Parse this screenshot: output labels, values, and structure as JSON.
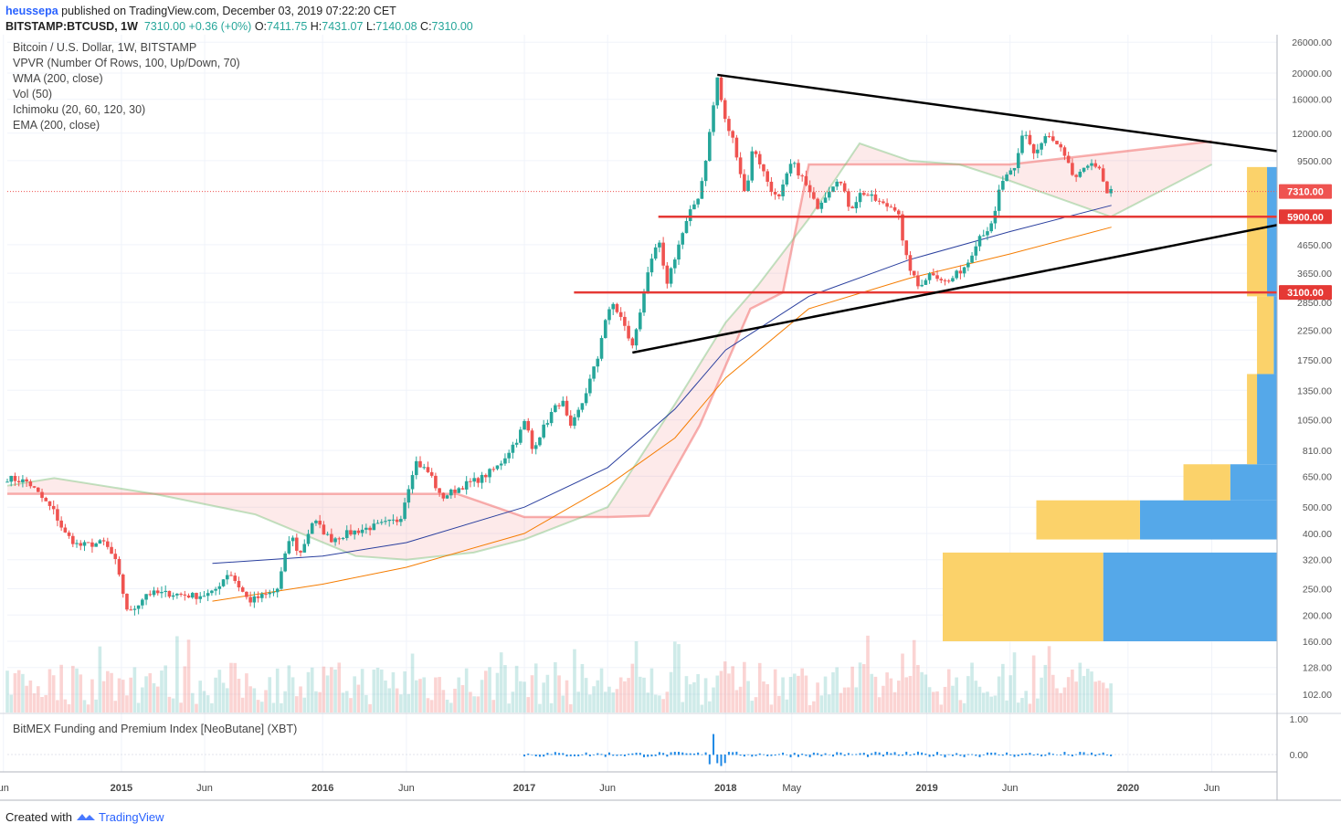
{
  "header": {
    "user": "heussepa",
    "published": "published on TradingView.com, December 03, 2019 07:22:20 CET",
    "symbol": "BITSTAMP:BTCUSD, 1W",
    "last": "7310.00",
    "change": "+0.36 (+0%)",
    "o_label": "O:",
    "o": "7411.75",
    "h_label": "H:",
    "h": "7431.07",
    "l_label": "L:",
    "l": "7140.08",
    "c_label": "C:",
    "c": "7310.00"
  },
  "legend": [
    "Bitcoin / U.S. Dollar, 1W, BITSTAMP",
    "VPVR (Number Of Rows, 100, Up/Down, 70)",
    "WMA (200, close)",
    "Vol (50)",
    "Ichimoku (20, 60, 120, 30)",
    "EMA (200, close)"
  ],
  "subpane_title": "BitMEX Funding and Premium Index [NeoButane] (XBT)",
  "footer": {
    "created_with": "Created with",
    "brand": "TradingView"
  },
  "colors": {
    "up": "#26a69a",
    "down": "#ef5350",
    "hline": "#e53935",
    "trend": "#000000",
    "wma": "#2a3f9e",
    "ema": "#f57c00",
    "vp_up": "#4ca3e8",
    "vp_down": "#fbd062"
  },
  "chart_data": {
    "type": "candlestick",
    "scale": "log",
    "y_ticks": [
      "26000.00",
      "20000.00",
      "16000.00",
      "12000.00",
      "9500.00",
      "4650.00",
      "3650.00",
      "2850.00",
      "2250.00",
      "1750.00",
      "1350.00",
      "1050.00",
      "810.00",
      "650.00",
      "500.00",
      "400.00",
      "320.00",
      "250.00",
      "200.00",
      "160.00",
      "128.00",
      "102.00"
    ],
    "y_tick_values": [
      26000,
      20000,
      16000,
      12000,
      9500,
      4650,
      3650,
      2850,
      2250,
      1750,
      1350,
      1050,
      810,
      650,
      500,
      400,
      320,
      250,
      200,
      160,
      128,
      102
    ],
    "x_ticks": [
      {
        "label": "un",
        "bold": false,
        "date": "2014-06"
      },
      {
        "label": "2015",
        "bold": true,
        "date": "2015-01"
      },
      {
        "label": "Jun",
        "bold": false,
        "date": "2015-06"
      },
      {
        "label": "2016",
        "bold": true,
        "date": "2016-01"
      },
      {
        "label": "Jun",
        "bold": false,
        "date": "2016-06"
      },
      {
        "label": "2017",
        "bold": true,
        "date": "2017-01"
      },
      {
        "label": "Jun",
        "bold": false,
        "date": "2017-06"
      },
      {
        "label": "2018",
        "bold": true,
        "date": "2018-01"
      },
      {
        "label": "May",
        "bold": false,
        "date": "2018-05"
      },
      {
        "label": "2019",
        "bold": true,
        "date": "2019-01"
      },
      {
        "label": "Jun",
        "bold": false,
        "date": "2019-06"
      },
      {
        "label": "2020",
        "bold": true,
        "date": "2020-01"
      },
      {
        "label": "Jun",
        "bold": false,
        "date": "2020-06"
      }
    ],
    "price_tags": [
      {
        "label": "7310.00",
        "value": 7310,
        "kind": "last"
      },
      {
        "label": "5900.00",
        "value": 5900,
        "kind": "level"
      },
      {
        "label": "3100.00",
        "value": 3100,
        "kind": "level"
      }
    ],
    "horizontal_levels": [
      {
        "value": 5900,
        "from": "2017-09",
        "to": "2020-12"
      },
      {
        "value": 3100,
        "from": "2017-04",
        "to": "2020-12"
      }
    ],
    "trendlines": [
      {
        "from": {
          "date": "2017-12-17",
          "price": 19700
        },
        "to": {
          "date": "2020-12-01",
          "price": 10300
        }
      },
      {
        "from": {
          "date": "2017-07-16",
          "price": 1860
        },
        "to": {
          "date": "2020-12-01",
          "price": 5500
        }
      }
    ],
    "price_path": [
      [
        "2014-06-08",
        640
      ],
      [
        "2014-07-15",
        620
      ],
      [
        "2014-09-01",
        480
      ],
      [
        "2014-09-20",
        400
      ],
      [
        "2014-10-15",
        360
      ],
      [
        "2014-12-01",
        370
      ],
      [
        "2014-12-20",
        320
      ],
      [
        "2015-01-14",
        200
      ],
      [
        "2015-02-15",
        240
      ],
      [
        "2015-04-01",
        240
      ],
      [
        "2015-05-15",
        235
      ],
      [
        "2015-06-15",
        240
      ],
      [
        "2015-07-15",
        290
      ],
      [
        "2015-08-20",
        225
      ],
      [
        "2015-09-15",
        235
      ],
      [
        "2015-10-10",
        245
      ],
      [
        "2015-11-04",
        400
      ],
      [
        "2015-11-20",
        330
      ],
      [
        "2015-12-15",
        450
      ],
      [
        "2016-01-15",
        380
      ],
      [
        "2016-02-15",
        400
      ],
      [
        "2016-03-15",
        415
      ],
      [
        "2016-04-15",
        430
      ],
      [
        "2016-05-20",
        450
      ],
      [
        "2016-06-17",
        740
      ],
      [
        "2016-07-15",
        660
      ],
      [
        "2016-08-02",
        540
      ],
      [
        "2016-09-15",
        605
      ],
      [
        "2016-10-15",
        640
      ],
      [
        "2016-11-15",
        710
      ],
      [
        "2016-12-20",
        900
      ],
      [
        "2017-01-03",
        1050
      ],
      [
        "2017-01-15",
        820
      ],
      [
        "2017-02-20",
        1120
      ],
      [
        "2017-03-10",
        1250
      ],
      [
        "2017-03-25",
        960
      ],
      [
        "2017-04-15",
        1200
      ],
      [
        "2017-05-15",
        1800
      ],
      [
        "2017-05-25",
        2400
      ],
      [
        "2017-06-11",
        2800
      ],
      [
        "2017-06-25",
        2500
      ],
      [
        "2017-07-16",
        1950
      ],
      [
        "2017-08-10",
        3400
      ],
      [
        "2017-09-01",
        4900
      ],
      [
        "2017-09-15",
        3300
      ],
      [
        "2017-10-10",
        4800
      ],
      [
        "2017-10-30",
        6200
      ],
      [
        "2017-11-15",
        7200
      ],
      [
        "2017-11-29",
        10500
      ],
      [
        "2017-12-17",
        19200
      ],
      [
        "2017-12-30",
        13500
      ],
      [
        "2018-01-17",
        11000
      ],
      [
        "2018-02-06",
        7000
      ],
      [
        "2018-02-20",
        10800
      ],
      [
        "2018-03-15",
        8200
      ],
      [
        "2018-04-06",
        6700
      ],
      [
        "2018-05-01",
        9400
      ],
      [
        "2018-05-20",
        8200
      ],
      [
        "2018-06-15",
        6400
      ],
      [
        "2018-07-24",
        8300
      ],
      [
        "2018-08-15",
        6300
      ],
      [
        "2018-09-05",
        7300
      ],
      [
        "2018-10-15",
        6500
      ],
      [
        "2018-11-10",
        6350
      ],
      [
        "2018-11-20",
        4400
      ],
      [
        "2018-12-15",
        3250
      ],
      [
        "2019-01-10",
        3700
      ],
      [
        "2019-02-07",
        3350
      ],
      [
        "2019-03-15",
        3950
      ],
      [
        "2019-04-05",
        5000
      ],
      [
        "2019-05-01",
        5500
      ],
      [
        "2019-05-15",
        7900
      ],
      [
        "2019-06-10",
        8800
      ],
      [
        "2019-06-26",
        12500
      ],
      [
        "2019-07-15",
        10000
      ],
      [
        "2019-08-07",
        11800
      ],
      [
        "2019-09-01",
        10400
      ],
      [
        "2019-09-25",
        8200
      ],
      [
        "2019-10-10",
        8500
      ],
      [
        "2019-10-26",
        9600
      ],
      [
        "2019-11-10",
        8700
      ],
      [
        "2019-11-25",
        7000
      ],
      [
        "2019-12-02",
        7310
      ]
    ],
    "wma_path": [
      [
        "2015-06-15",
        310
      ],
      [
        "2016-01-01",
        330
      ],
      [
        "2016-06-01",
        370
      ],
      [
        "2017-01-01",
        500
      ],
      [
        "2017-06-01",
        700
      ],
      [
        "2017-10-01",
        1150
      ],
      [
        "2018-01-01",
        1900
      ],
      [
        "2018-06-01",
        3000
      ],
      [
        "2018-12-01",
        4100
      ],
      [
        "2019-06-01",
        5200
      ],
      [
        "2019-12-02",
        6500
      ]
    ],
    "ema_path": [
      [
        "2015-06-15",
        225
      ],
      [
        "2016-01-01",
        260
      ],
      [
        "2016-06-01",
        300
      ],
      [
        "2017-01-01",
        400
      ],
      [
        "2017-06-01",
        600
      ],
      [
        "2017-10-01",
        900
      ],
      [
        "2018-01-01",
        1500
      ],
      [
        "2018-06-01",
        2700
      ],
      [
        "2018-12-01",
        3500
      ],
      [
        "2019-06-01",
        4300
      ],
      [
        "2019-12-02",
        5400
      ]
    ],
    "cloud_upper": [
      [
        "2014-06-08",
        560
      ],
      [
        "2015-06-01",
        560
      ],
      [
        "2016-03-01",
        560
      ],
      [
        "2016-06-01",
        560
      ],
      [
        "2016-09-01",
        560
      ],
      [
        "2017-01-01",
        460
      ],
      [
        "2017-06-01",
        460
      ],
      [
        "2017-08-15",
        465
      ],
      [
        "2017-11-15",
        1000
      ],
      [
        "2018-02-15",
        2700
      ],
      [
        "2018-04-15",
        3100
      ],
      [
        "2018-06-01",
        9200
      ],
      [
        "2018-12-01",
        9200
      ],
      [
        "2019-06-01",
        9200
      ],
      [
        "2020-06-01",
        11200
      ]
    ],
    "cloud_lower": [
      [
        "2014-06-08",
        600
      ],
      [
        "2014-09-01",
        640
      ],
      [
        "2015-03-01",
        560
      ],
      [
        "2015-09-01",
        470
      ],
      [
        "2016-03-01",
        330
      ],
      [
        "2016-06-01",
        320
      ],
      [
        "2016-10-01",
        340
      ],
      [
        "2017-01-01",
        380
      ],
      [
        "2017-06-01",
        500
      ],
      [
        "2017-10-01",
        1200
      ],
      [
        "2018-01-01",
        2400
      ],
      [
        "2018-03-01",
        3300
      ],
      [
        "2018-06-01",
        5800
      ],
      [
        "2018-09-01",
        11000
      ],
      [
        "2018-12-01",
        9500
      ],
      [
        "2019-03-01",
        9200
      ],
      [
        "2019-06-01",
        8000
      ],
      [
        "2019-12-01",
        5900
      ],
      [
        "2020-06-01",
        9200
      ]
    ],
    "volume_profile": [
      {
        "price_low": 160,
        "price_high": 340,
        "up": 0.52,
        "down": 0.48
      },
      {
        "price_low": 380,
        "price_high": 530,
        "up": 0.41,
        "down": 0.31
      },
      {
        "price_low": 530,
        "price_high": 720,
        "up": 0.14,
        "down": 0.14
      },
      {
        "price_low": 720,
        "price_high": 1550,
        "up": 0.06,
        "down": 0.03
      },
      {
        "price_low": 1550,
        "price_high": 3000,
        "up": 0.01,
        "down": 0.05
      },
      {
        "price_low": 3000,
        "price_high": 9000,
        "up": 0.03,
        "down": 0.06
      }
    ],
    "funding_y_ticks": [
      "1.00",
      "0.00"
    ],
    "funding_y_values": [
      1.0,
      0.0
    ]
  }
}
